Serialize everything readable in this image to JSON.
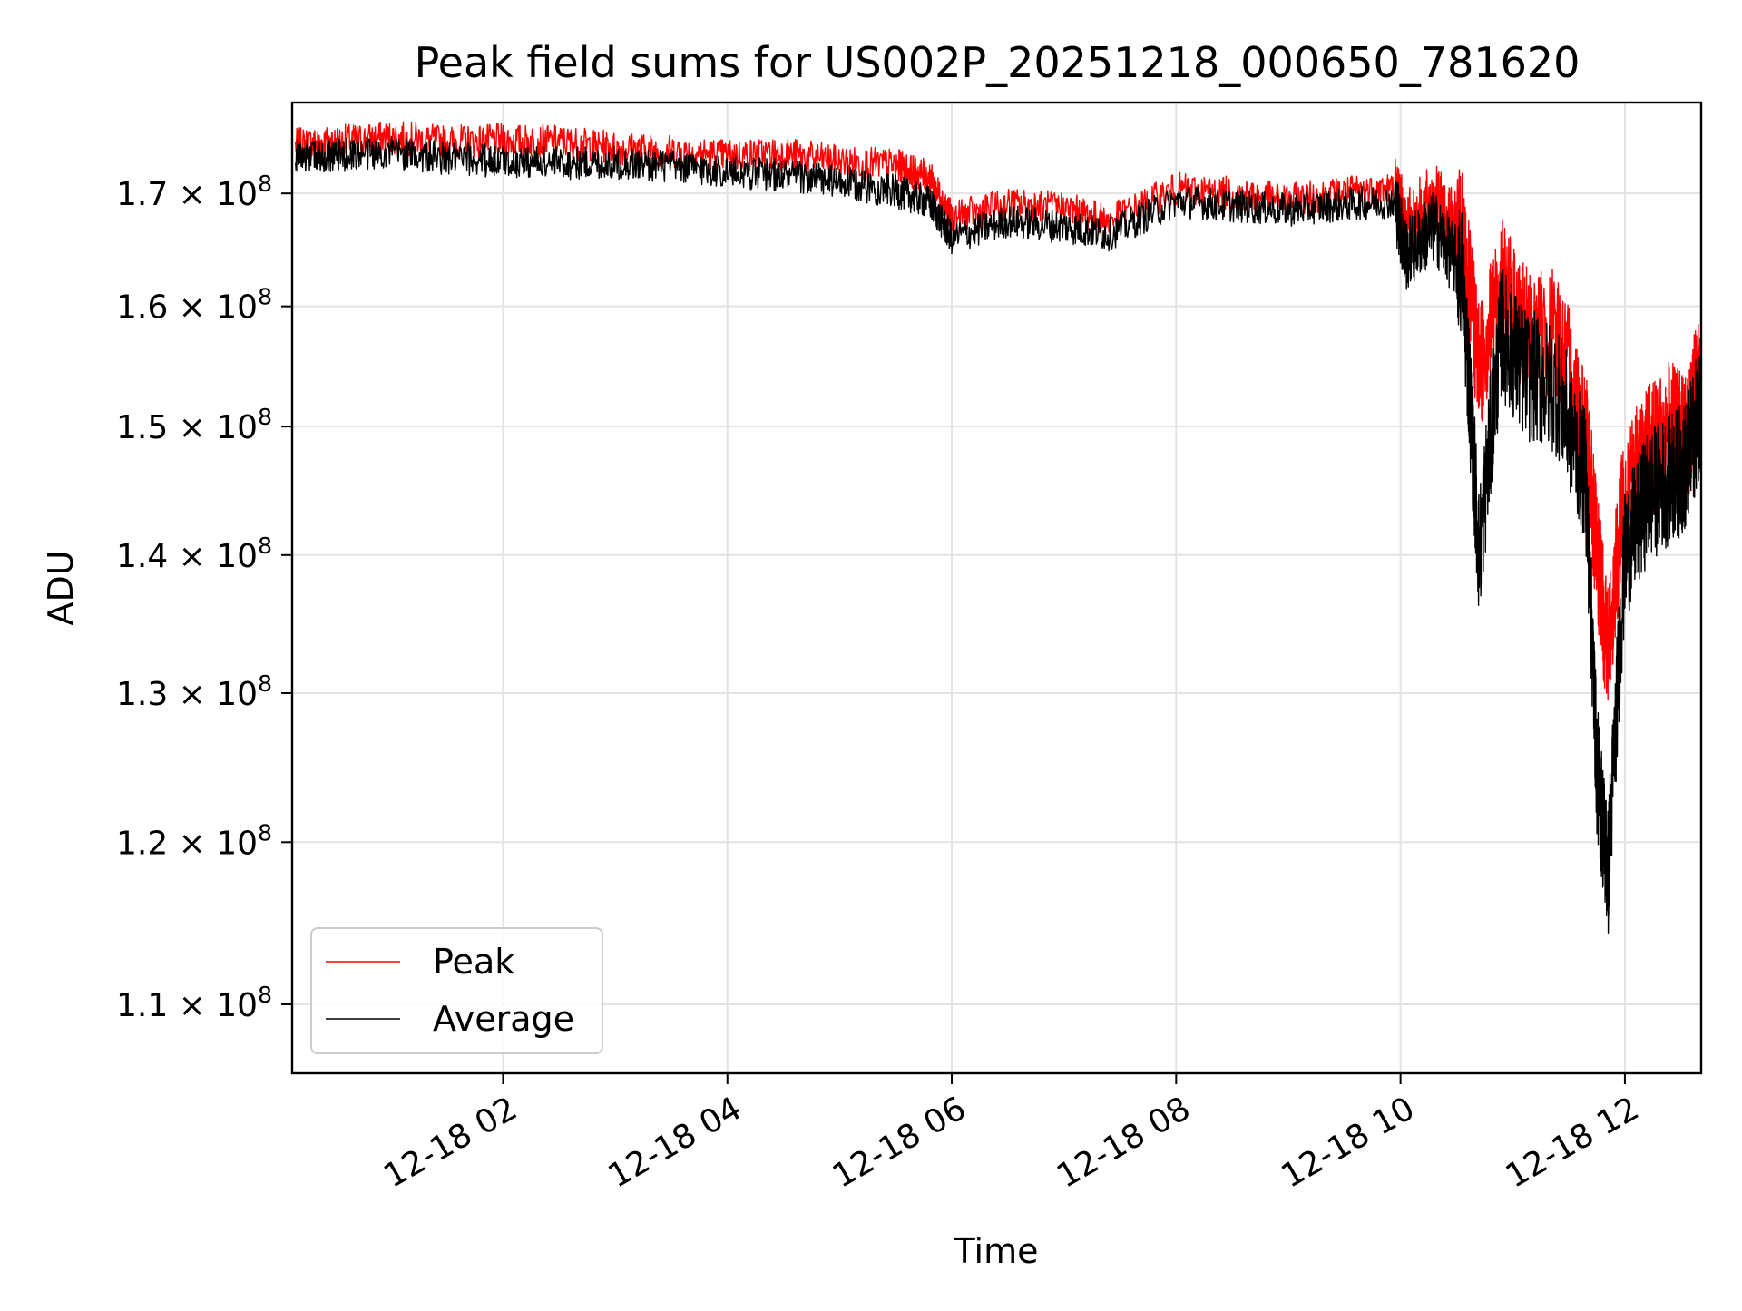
{
  "chart_data": {
    "type": "line",
    "title": "Peak field sums for US002P_20251218_000650_781620",
    "xlabel": "Time",
    "ylabel": "ADU",
    "x_unit": "hours since 2025-12-18 00:00",
    "xlim": [
      0.12,
      12.68
    ],
    "ylim": [
      106000000,
      178500000
    ],
    "yscale": "log",
    "grid": true,
    "legend_position": "lower-left",
    "x_ticks": [
      {
        "value": 2,
        "label": "12-18 02"
      },
      {
        "value": 4,
        "label": "12-18 04"
      },
      {
        "value": 6,
        "label": "12-18 06"
      },
      {
        "value": 8,
        "label": "12-18 08"
      },
      {
        "value": 10,
        "label": "12-18 10"
      },
      {
        "value": 12,
        "label": "12-18 12"
      }
    ],
    "y_ticks": [
      {
        "value": 110000000,
        "mantissa": "1.1",
        "label": "1.1 × 10^8"
      },
      {
        "value": 120000000,
        "mantissa": "1.2",
        "label": "1.2 × 10^8"
      },
      {
        "value": 130000000,
        "mantissa": "1.3",
        "label": "1.3 × 10^8"
      },
      {
        "value": 140000000,
        "mantissa": "1.4",
        "label": "1.4 × 10^8"
      },
      {
        "value": 150000000,
        "mantissa": "1.5",
        "label": "1.5 × 10^8"
      },
      {
        "value": 160000000,
        "mantissa": "1.6",
        "label": "1.6 × 10^8"
      },
      {
        "value": 170000000,
        "mantissa": "1.7",
        "label": "1.7 × 10^8"
      }
    ],
    "y_tick_times": "×",
    "y_tick_base": "10",
    "y_tick_exponent": "8",
    "x": [
      0.15,
      0.5,
      1.0,
      1.5,
      2.0,
      2.5,
      3.0,
      3.5,
      4.0,
      4.5,
      5.0,
      5.5,
      5.8,
      6.0,
      6.5,
      7.0,
      7.4,
      8.0,
      8.5,
      9.0,
      9.5,
      9.95,
      10.05,
      10.3,
      10.55,
      10.7,
      10.9,
      11.1,
      11.4,
      11.65,
      11.75,
      11.85,
      12.0,
      12.2,
      12.4,
      12.55,
      12.68
    ],
    "series": [
      {
        "name": "Peak",
        "color": "#ff0000",
        "values": [
          174500000,
          174800000,
          175200000,
          174800000,
          174900000,
          174800000,
          174200000,
          173900000,
          173500000,
          173700000,
          172900000,
          172600000,
          171500000,
          167800000,
          169000000,
          168700000,
          167500000,
          170400000,
          170000000,
          169400000,
          170100000,
          170500000,
          167000000,
          169500000,
          166000000,
          155000000,
          162000000,
          158000000,
          157500000,
          150000000,
          140000000,
          133000000,
          145000000,
          148000000,
          150000000,
          149000000,
          155000000
        ]
      },
      {
        "name": "Average",
        "color": "#000000",
        "values": [
          173500000,
          173500000,
          173800000,
          173200000,
          173000000,
          172800000,
          172800000,
          172500000,
          172000000,
          171700000,
          171000000,
          170200000,
          169200000,
          166000000,
          167500000,
          167000000,
          166300000,
          169300000,
          168900000,
          168500000,
          169000000,
          169300000,
          164500000,
          167000000,
          163000000,
          140000000,
          158000000,
          154500000,
          153000000,
          146000000,
          125000000,
          118000000,
          140000000,
          144500000,
          146000000,
          147000000,
          152000000
        ]
      }
    ]
  }
}
